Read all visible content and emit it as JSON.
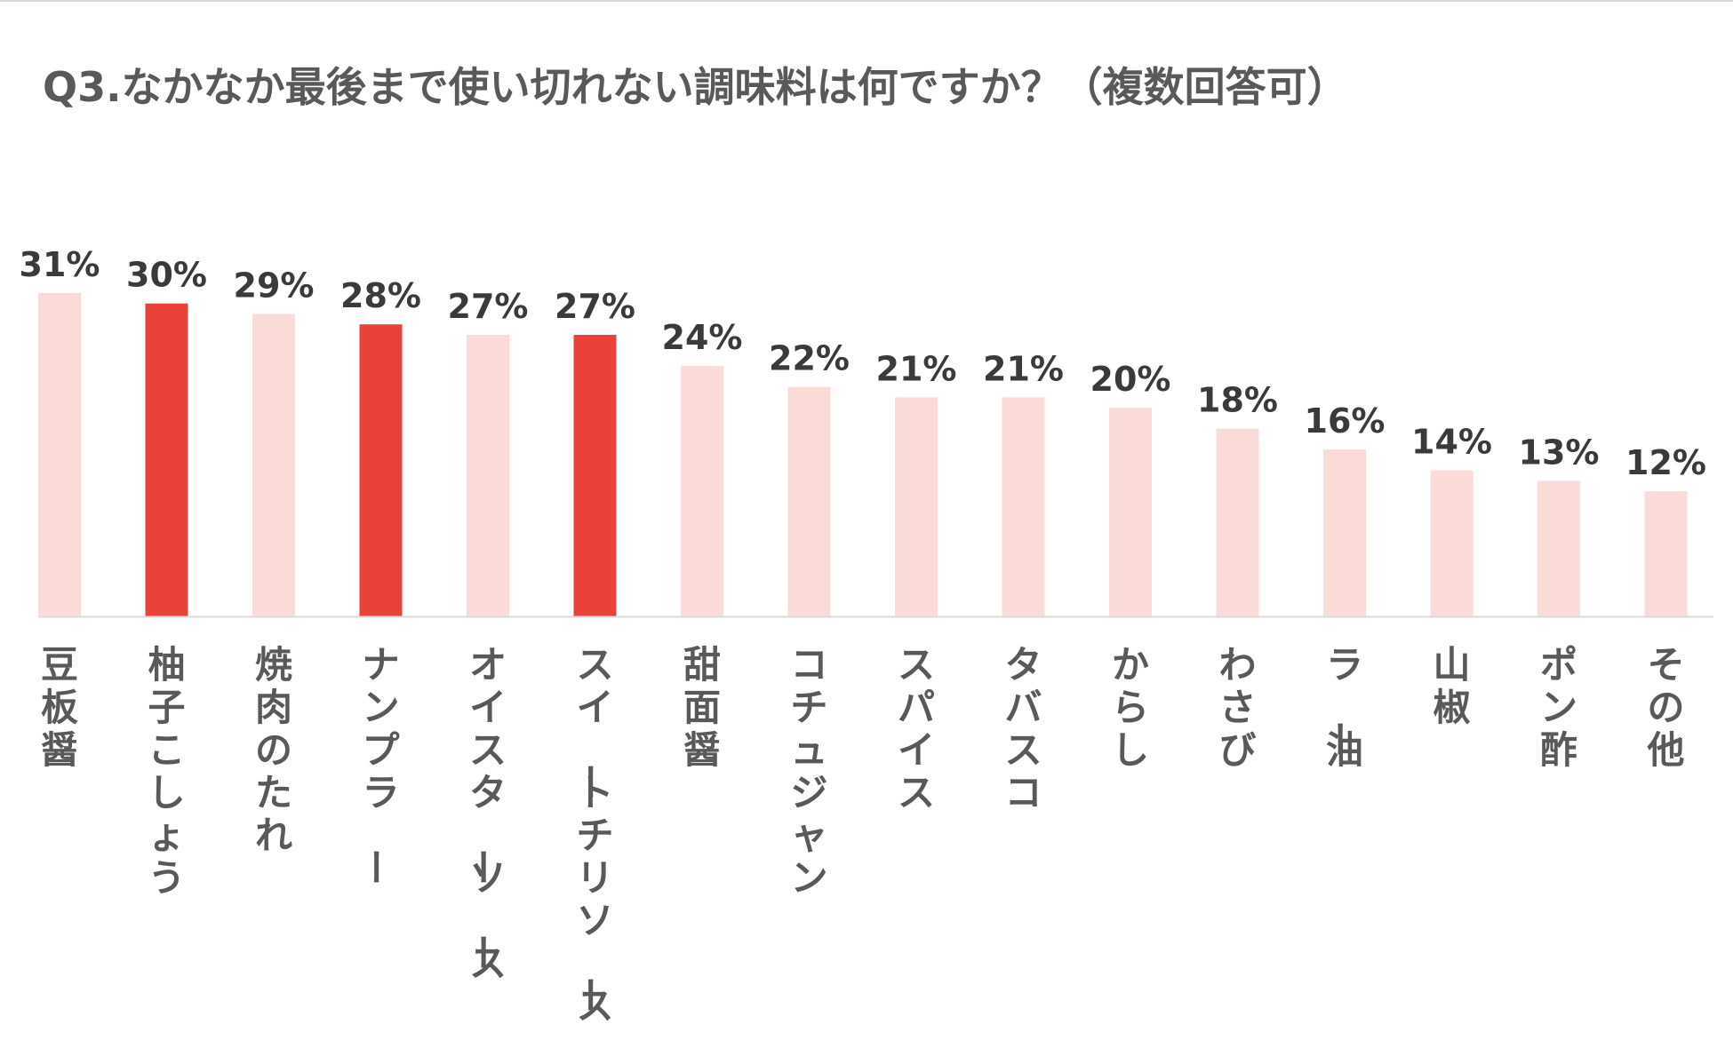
{
  "chart_data": {
    "type": "bar",
    "title": "Q3.なかなか最後まで使い切れない調味料は何ですか？（複数回答可）",
    "xlabel": "",
    "ylabel": "",
    "categories": [
      "豆板醤",
      "柚子こしょう",
      "焼肉のたれ",
      "ナンプラー",
      "オイスターソース",
      "スイートチリソース",
      "甜面醤",
      "コチュジャン",
      "スパイス",
      "タバスコ",
      "からし",
      "わさび",
      "ラー油",
      "山椒",
      "ポン酢",
      "その他"
    ],
    "values": [
      31,
      30,
      29,
      28,
      27,
      27,
      24,
      22,
      21,
      21,
      20,
      18,
      16,
      14,
      13,
      12
    ],
    "value_labels": [
      "31%",
      "30%",
      "29%",
      "28%",
      "27%",
      "27%",
      "24%",
      "22%",
      "21%",
      "21%",
      "20%",
      "18%",
      "16%",
      "14%",
      "13%",
      "12%"
    ],
    "highlighted": [
      false,
      true,
      false,
      true,
      false,
      true,
      false,
      false,
      false,
      false,
      false,
      false,
      false,
      false,
      false,
      false
    ],
    "ylim": [
      0,
      31
    ],
    "grid": false,
    "legend": "none",
    "colors": {
      "bar": "#fadbd8",
      "highlight": "#e8423a",
      "value_label": "#3a3a3a",
      "category_label": "#595959",
      "title": "#595959",
      "axis": "#d9d9d9"
    }
  }
}
